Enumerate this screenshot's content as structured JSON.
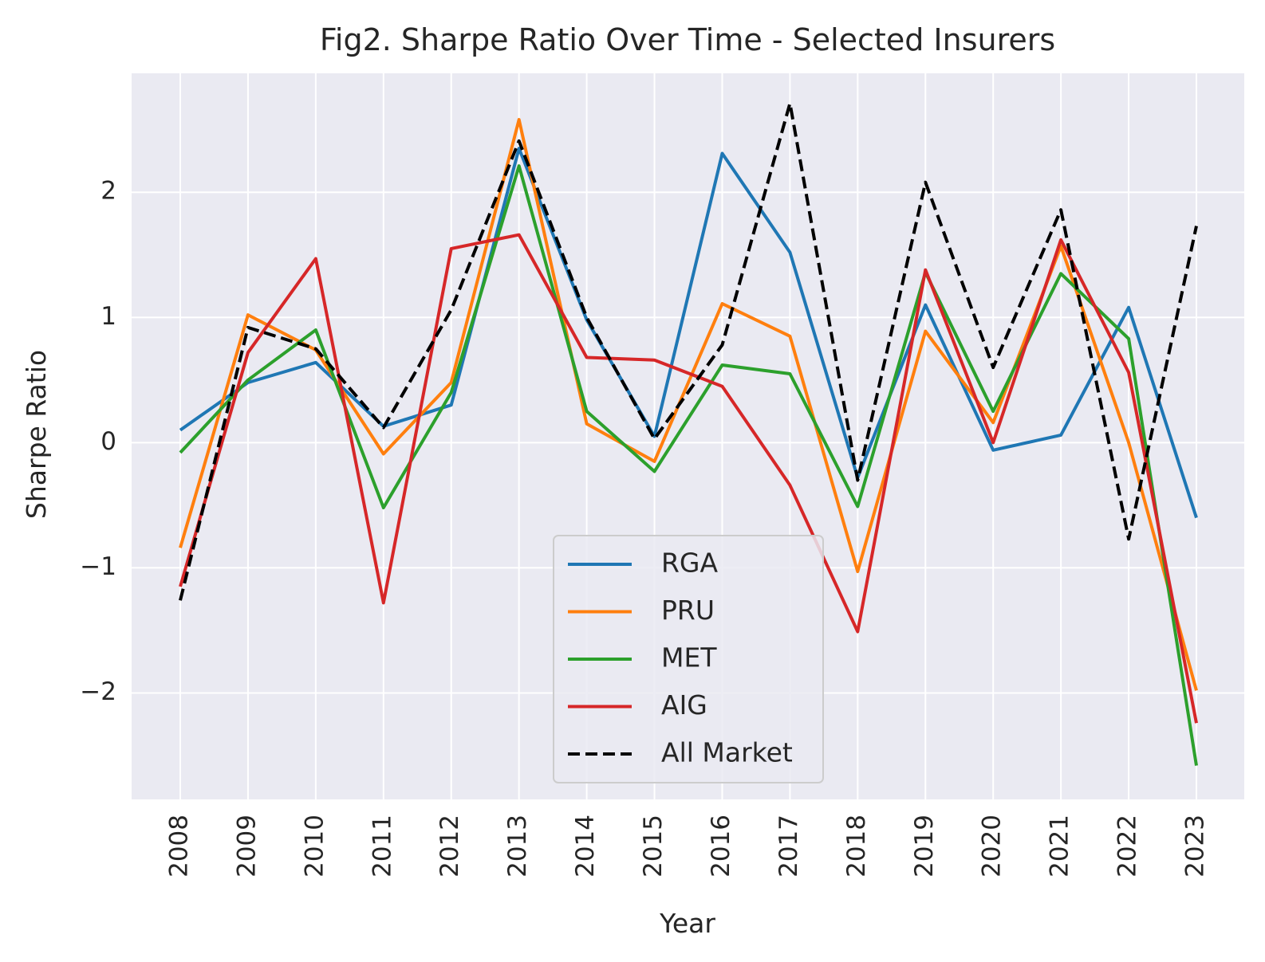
{
  "chart_data": {
    "type": "line",
    "title": "Fig2. Sharpe Ratio Over Time - Selected Insurers",
    "xlabel": "Year",
    "ylabel": "Sharpe Ratio",
    "x": [
      "2008",
      "2009",
      "2010",
      "2011",
      "2012",
      "2013",
      "2014",
      "2015",
      "2016",
      "2017",
      "2018",
      "2019",
      "2020",
      "2021",
      "2022",
      "2023"
    ],
    "ylim": [
      -2.85,
      2.95
    ],
    "yticks": [
      -2,
      -1,
      0,
      1,
      2
    ],
    "ytick_labels": [
      "−2",
      "−1",
      "0",
      "1",
      "2"
    ],
    "grid": true,
    "legend_position": "lower-center",
    "series": [
      {
        "name": "RGA",
        "color": "#1f77b4",
        "dash": false,
        "values": [
          0.1,
          0.48,
          0.64,
          0.13,
          0.3,
          2.35,
          0.98,
          0.05,
          2.31,
          1.52,
          -0.28,
          1.1,
          -0.06,
          0.06,
          1.08,
          -0.6
        ]
      },
      {
        "name": "PRU",
        "color": "#ff7f0e",
        "dash": false,
        "values": [
          -0.84,
          1.02,
          0.74,
          -0.09,
          0.48,
          2.58,
          0.15,
          -0.15,
          1.11,
          0.85,
          -1.03,
          0.89,
          0.16,
          1.57,
          0.0,
          -1.98
        ]
      },
      {
        "name": "MET",
        "color": "#2ca02c",
        "dash": false,
        "values": [
          -0.08,
          0.5,
          0.9,
          -0.52,
          0.4,
          2.21,
          0.25,
          -0.23,
          0.62,
          0.55,
          -0.51,
          1.36,
          0.25,
          1.35,
          0.83,
          -2.58
        ]
      },
      {
        "name": "AIG",
        "color": "#d62728",
        "dash": false,
        "values": [
          -1.15,
          0.72,
          1.47,
          -1.28,
          1.55,
          1.66,
          0.68,
          0.66,
          0.45,
          -0.34,
          -1.51,
          1.38,
          0.0,
          1.62,
          0.56,
          -2.24
        ]
      },
      {
        "name": "All Market",
        "color": "#000000",
        "dash": true,
        "values": [
          -1.26,
          0.92,
          0.75,
          0.12,
          1.06,
          2.41,
          1.0,
          0.03,
          0.78,
          2.71,
          -0.3,
          2.08,
          0.6,
          1.86,
          -0.77,
          1.73
        ]
      }
    ]
  }
}
